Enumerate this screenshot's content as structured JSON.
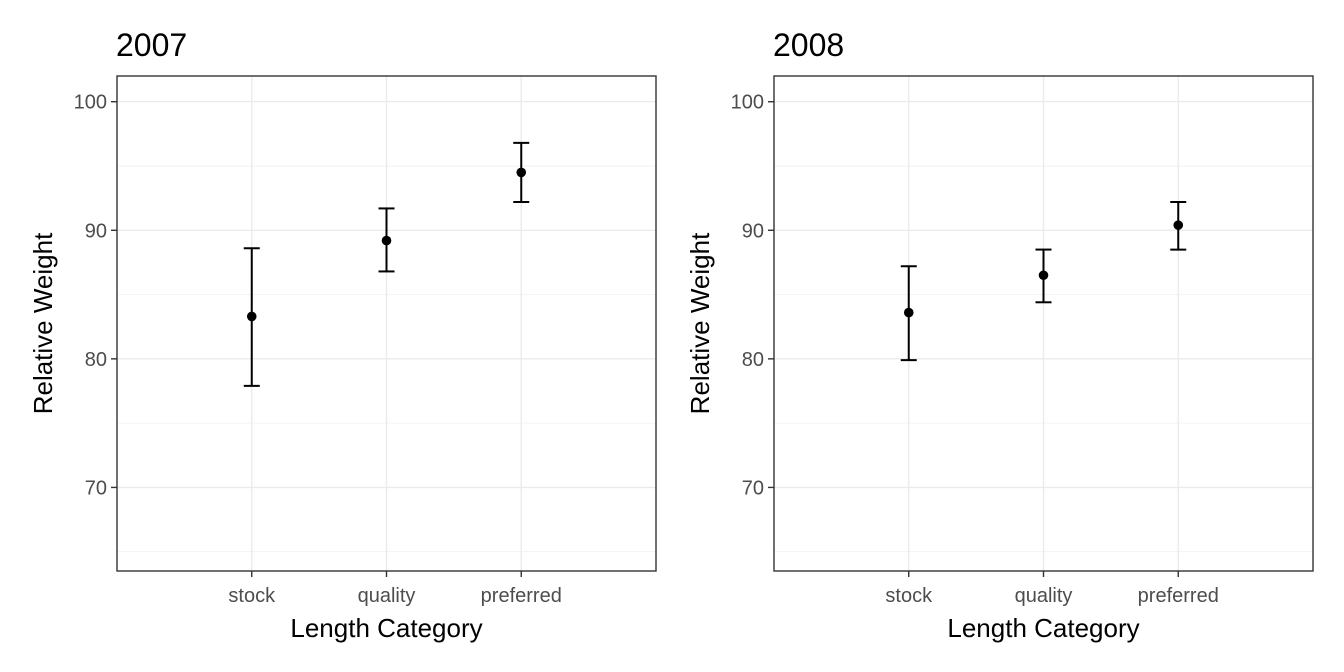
{
  "chart_data": [
    {
      "type": "scatter",
      "title": "2007",
      "xlabel": "Length Category",
      "ylabel": "Relative Weight",
      "categories": [
        "stock",
        "quality",
        "preferred"
      ],
      "ylim": [
        63.5,
        102
      ],
      "yticks": [
        70,
        80,
        90,
        100
      ],
      "grid": true,
      "series": [
        {
          "mean": [
            83.3,
            89.2,
            94.5
          ],
          "lower": [
            77.9,
            86.8,
            92.2
          ],
          "upper": [
            88.6,
            91.7,
            96.8
          ]
        }
      ]
    },
    {
      "type": "scatter",
      "title": "2008",
      "xlabel": "Length Category",
      "ylabel": "Relative Weight",
      "categories": [
        "stock",
        "quality",
        "preferred"
      ],
      "ylim": [
        63.5,
        102
      ],
      "yticks": [
        70,
        80,
        90,
        100
      ],
      "grid": true,
      "series": [
        {
          "mean": [
            83.6,
            86.5,
            90.4
          ],
          "lower": [
            79.9,
            84.4,
            88.5
          ],
          "upper": [
            87.2,
            88.5,
            92.2
          ]
        }
      ]
    }
  ]
}
